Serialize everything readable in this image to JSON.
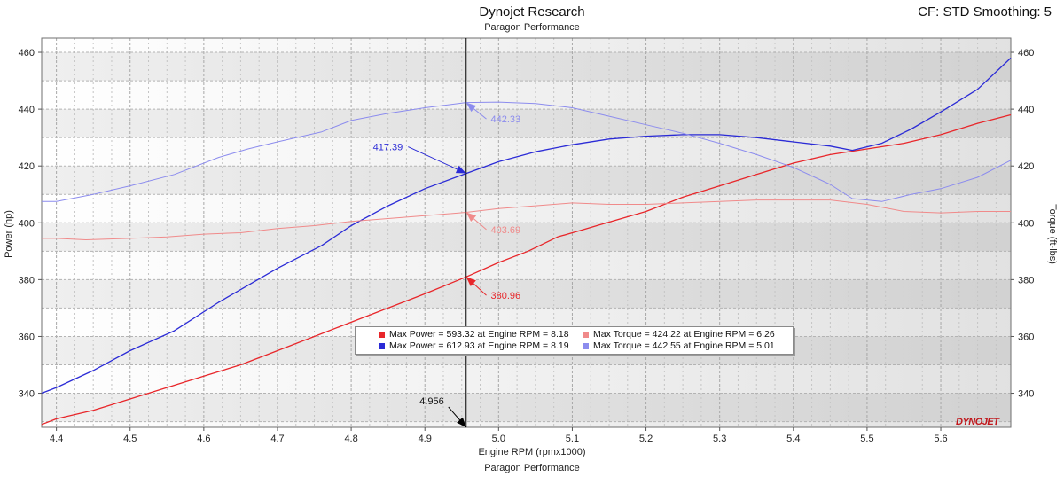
{
  "header": {
    "title": "Dynojet Research",
    "subtitle": "Paragon Performance",
    "right_info": "CF: STD Smoothing: 5",
    "footer": "Paragon Performance"
  },
  "colors": {
    "red_dark": "#e8262a",
    "red_light": "#f08a8a",
    "blue_dark": "#2b2bd6",
    "blue_light": "#8c8cee",
    "cursor": "#000000"
  },
  "logo_text": "DYNOJET",
  "chart_data": {
    "type": "line",
    "xlabel": "Engine RPM (rpmx1000)",
    "ylabel_left": "Power (hp)",
    "ylabel_right": "Torque (ft-lbs)",
    "xlim": [
      4.38,
      5.695
    ],
    "ylim": [
      328,
      465
    ],
    "xticks": [
      4.4,
      4.5,
      4.6,
      4.7,
      4.8,
      4.9,
      5.0,
      5.1,
      5.2,
      5.3,
      5.4,
      5.5,
      5.6
    ],
    "yticks": [
      340,
      360,
      380,
      400,
      420,
      440,
      460
    ],
    "grid": true,
    "series": [
      {
        "name": "Max Power = 593.32 at Engine RPM = 8.18",
        "color": "#e8262a",
        "width": 1.3,
        "x": [
          4.38,
          4.4,
          4.45,
          4.5,
          4.55,
          4.6,
          4.65,
          4.7,
          4.75,
          4.8,
          4.85,
          4.9,
          4.956,
          5.0,
          5.04,
          5.08,
          5.12,
          5.16,
          5.2,
          5.25,
          5.3,
          5.35,
          5.4,
          5.45,
          5.5,
          5.55,
          5.6,
          5.65,
          5.695
        ],
        "y": [
          329,
          331,
          334,
          338,
          342,
          346,
          350,
          355,
          360,
          365,
          370,
          375,
          380.96,
          386,
          390,
          395,
          398,
          401,
          404,
          409,
          413,
          417,
          421,
          424,
          426,
          428,
          431,
          435,
          438
        ]
      },
      {
        "name": "Max Power = 612.93 at Engine RPM = 8.19",
        "color": "#2b2bd6",
        "width": 1.3,
        "x": [
          4.38,
          4.4,
          4.45,
          4.5,
          4.56,
          4.62,
          4.66,
          4.7,
          4.76,
          4.8,
          4.85,
          4.9,
          4.956,
          5.0,
          5.05,
          5.1,
          5.15,
          5.2,
          5.25,
          5.3,
          5.35,
          5.4,
          5.45,
          5.48,
          5.52,
          5.56,
          5.6,
          5.65,
          5.695
        ],
        "y": [
          340,
          342,
          348,
          355,
          362,
          372,
          378,
          384,
          392,
          399,
          406,
          412,
          417.39,
          421.5,
          425,
          427.5,
          429.5,
          430.5,
          431,
          431,
          430,
          428.5,
          427,
          425.5,
          428,
          433,
          439,
          447,
          458
        ]
      },
      {
        "name": "Max Torque = 424.22 at Engine RPM = 6.26",
        "color": "#f08a8a",
        "width": 1.0,
        "x": [
          4.38,
          4.4,
          4.44,
          4.5,
          4.55,
          4.6,
          4.65,
          4.7,
          4.75,
          4.8,
          4.85,
          4.9,
          4.956,
          5.0,
          5.05,
          5.1,
          5.15,
          5.2,
          5.25,
          5.3,
          5.35,
          5.4,
          5.45,
          5.5,
          5.55,
          5.6,
          5.65,
          5.695
        ],
        "y": [
          394.5,
          394.5,
          394,
          394.5,
          395,
          396,
          396.5,
          398,
          399,
          400.5,
          401.5,
          402.5,
          403.69,
          405,
          406,
          407,
          406.5,
          406.5,
          407,
          407.5,
          408,
          408,
          408,
          406.5,
          404,
          403.5,
          404,
          404
        ]
      },
      {
        "name": "Max Torque = 442.55 at Engine RPM = 5.01",
        "color": "#8c8cee",
        "width": 1.0,
        "x": [
          4.38,
          4.4,
          4.45,
          4.5,
          4.56,
          4.62,
          4.66,
          4.7,
          4.76,
          4.8,
          4.85,
          4.9,
          4.956,
          5.0,
          5.05,
          5.1,
          5.15,
          5.2,
          5.25,
          5.3,
          5.35,
          5.4,
          5.45,
          5.48,
          5.52,
          5.56,
          5.6,
          5.65,
          5.695
        ],
        "y": [
          407.5,
          407.5,
          410,
          413,
          417,
          423,
          426,
          428.5,
          432,
          436,
          438.5,
          440.5,
          442.33,
          442.5,
          442,
          440.5,
          437.5,
          434.5,
          431.5,
          428,
          424,
          419.5,
          413.5,
          408.5,
          407.5,
          410,
          412,
          416,
          422
        ]
      }
    ],
    "cursor": {
      "x": 4.956,
      "label": "4.956",
      "readouts": [
        {
          "value": "442.33",
          "y": 442.33,
          "color": "#8c8cee",
          "label_x": 4.987,
          "label_y": 435.3
        },
        {
          "value": "417.39",
          "y": 417.39,
          "color": "#2b2bd6",
          "label_x": 4.87,
          "label_y": 425.5,
          "anchor": "end"
        },
        {
          "value": "403.69",
          "y": 403.69,
          "color": "#f08a8a",
          "label_x": 4.987,
          "label_y": 396.4
        },
        {
          "value": "380.96",
          "y": 380.96,
          "color": "#e8262a",
          "label_x": 4.987,
          "label_y": 373.2
        }
      ]
    }
  }
}
